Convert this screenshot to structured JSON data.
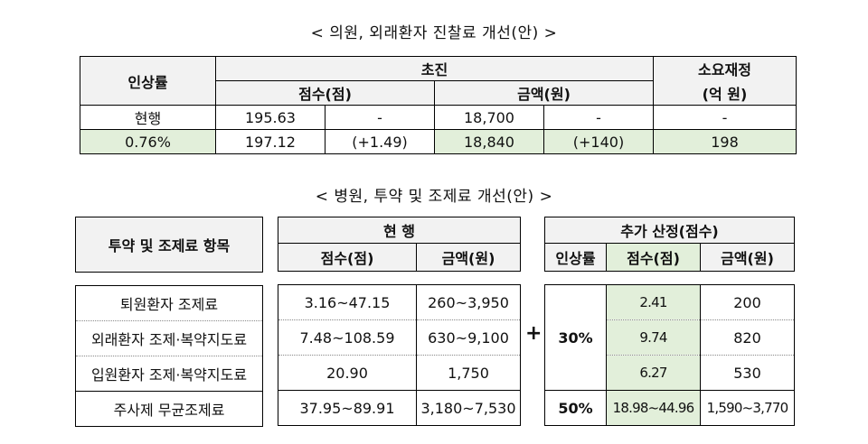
{
  "title1": "< 의원, 외래환자 진찰료 개선(안) >",
  "table1": {
    "col_rate": "인상률",
    "col_first": "초진",
    "col_budget_line1": "소요재정",
    "col_budget_line2": "(억 원)",
    "sub_score": "점수(점)",
    "sub_amount": "금액(원)",
    "rows": [
      {
        "rate": "현행",
        "score": "195.63",
        "score_delta": "-",
        "amount": "18,700",
        "amount_delta": "-",
        "budget": "-"
      },
      {
        "rate": "0.76%",
        "score": "197.12",
        "score_delta": "(+1.49)",
        "amount": "18,840",
        "amount_delta": "(+140)",
        "budget": "198"
      }
    ]
  },
  "title2": "< 병원, 투약 및 조제료 개선(안) >",
  "table2": {
    "col_item": "투약 및 조제료 항목",
    "col_current": "현  행",
    "col_added": "추가 산정(점수)",
    "sub_score": "점수(점)",
    "sub_amount": "금액(원)",
    "sub_rate": "인상률",
    "sub_added_score": "점수(점)",
    "sub_added_amount": "금액(원)",
    "plus_sign": "+",
    "rate_30": "30%",
    "rate_50": "50%",
    "rows": [
      {
        "item": "퇴원환자 조제료",
        "score": "3.16~47.15",
        "amount": "260~3,950",
        "add_score": "2.41",
        "add_amount": "200"
      },
      {
        "item": "외래환자 조제·복약지도료",
        "score": "7.48~108.59",
        "amount": "630~9,100",
        "add_score": "9.74",
        "add_amount": "820"
      },
      {
        "item": "입원환자 조제·복약지도료",
        "score": "20.90",
        "amount": "1,750",
        "add_score": "6.27",
        "add_amount": "530"
      },
      {
        "item": "주사제 무균조제료",
        "score": "37.95~89.91",
        "amount": "3,180~7,530",
        "add_score": "18.98~44.96",
        "add_amount": "1,590~3,770"
      }
    ]
  },
  "colors": {
    "header_bg": "#f2f2f2",
    "highlight_bg": "#e2efda"
  }
}
